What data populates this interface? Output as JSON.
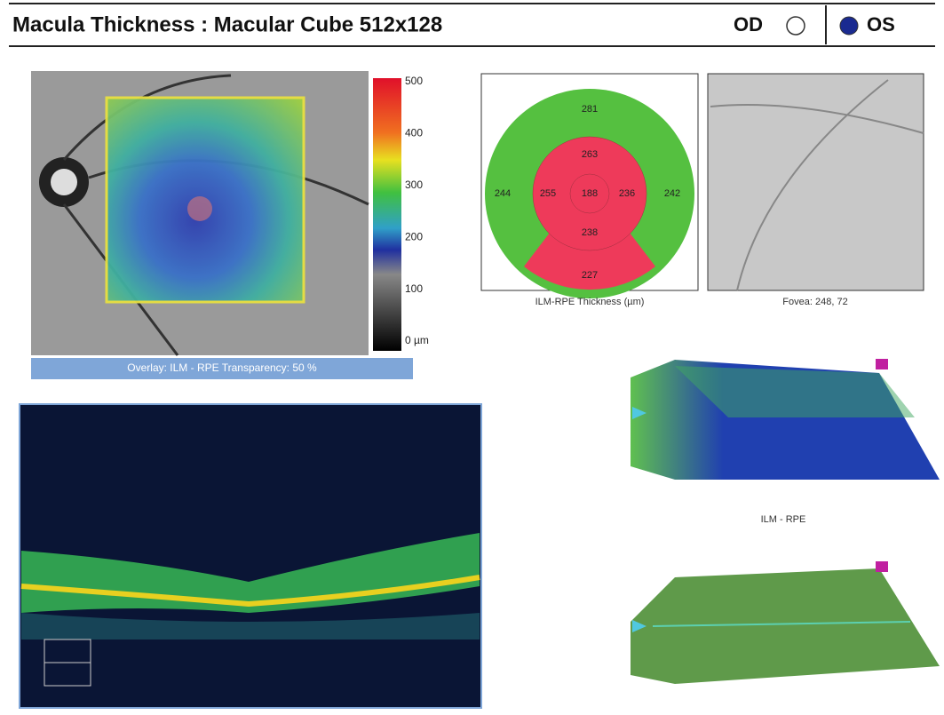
{
  "header": {
    "title": "Macula Thickness : Macular Cube 512x128",
    "od": "OD",
    "os": "OS"
  },
  "fundus": {
    "colorbar_labels": [
      "500",
      "400",
      "300",
      "200",
      "100",
      "0 µm"
    ],
    "caption": "Overlay: ILM - RPE  Transparency: 50 %"
  },
  "thickness_map": {
    "sectors": {
      "outer_superior": "281",
      "inner_superior": "263",
      "outer_nasal": "244",
      "inner_nasal": "255",
      "center": "188",
      "inner_temporal": "236",
      "outer_temporal": "242",
      "inner_inferior": "238",
      "outer_inferior": "227"
    },
    "caption": "ILM-RPE Thickness (µm)"
  },
  "fovea": {
    "caption": "Fovea: 248, 72"
  },
  "surface_map": {
    "caption": "ILM - RPE"
  }
}
